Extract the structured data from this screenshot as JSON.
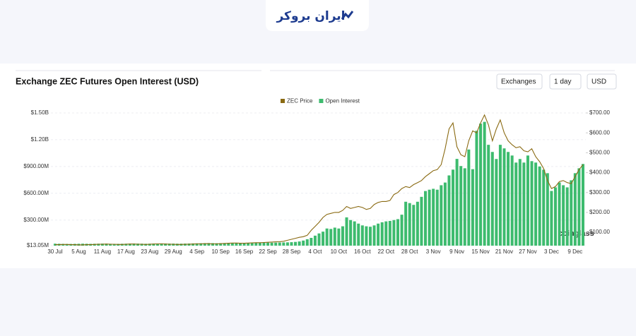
{
  "header": {
    "logo": "ایران بروکر"
  },
  "controls": [
    "Exchanges",
    "1 day",
    "USD"
  ],
  "watermark": "coinglass",
  "chart_data": {
    "type": "bar-line",
    "title": "Exchange ZEC Futures Open Interest (USD)",
    "categories": [
      "30 Jul",
      null,
      null,
      null,
      null,
      null,
      "5 Aug",
      null,
      null,
      null,
      null,
      null,
      "11 Aug",
      null,
      null,
      null,
      null,
      null,
      "17 Aug",
      null,
      null,
      null,
      null,
      null,
      "23 Aug",
      null,
      null,
      null,
      null,
      null,
      "29 Aug",
      null,
      null,
      null,
      null,
      null,
      "4 Sep",
      null,
      null,
      null,
      null,
      null,
      "10 Sep",
      null,
      null,
      null,
      null,
      null,
      "16 Sep",
      null,
      null,
      null,
      null,
      null,
      "22 Sep",
      null,
      null,
      null,
      null,
      null,
      "28 Sep",
      null,
      null,
      null,
      null,
      null,
      "4 Oct",
      null,
      null,
      null,
      null,
      null,
      "10 Oct",
      null,
      null,
      null,
      null,
      null,
      "16 Oct",
      null,
      null,
      null,
      null,
      null,
      "22 Oct",
      null,
      null,
      null,
      null,
      null,
      "28 Oct",
      null,
      null,
      null,
      null,
      null,
      "3 Nov",
      null,
      null,
      null,
      null,
      null,
      "9 Nov",
      null,
      null,
      null,
      null,
      null,
      "15 Nov",
      null,
      null,
      null,
      null,
      null,
      "21 Nov",
      null,
      null,
      null,
      null,
      null,
      "27 Nov",
      null,
      null,
      null,
      null,
      null,
      "3 Dec",
      null,
      null,
      null,
      null,
      null,
      "9 Dec",
      null,
      null
    ],
    "series": [
      {
        "name": "Open Interest",
        "color": "#3dbb6e",
        "kind": "bar",
        "values": [
          35000000.0,
          34000000.0,
          33000000.0,
          32000000.0,
          32000000.0,
          33000000.0,
          34000000.0,
          35000000.0,
          34000000.0,
          33000000.0,
          34000000.0,
          35000000.0,
          36000000.0,
          35000000.0,
          34000000.0,
          33000000.0,
          33000000.0,
          34000000.0,
          35000000.0,
          36000000.0,
          37000000.0,
          36000000.0,
          35000000.0,
          34000000.0,
          35000000.0,
          36000000.0,
          37000000.0,
          38000000.0,
          37000000.0,
          36000000.0,
          36000000.0,
          35000000.0,
          35000000.0,
          36000000.0,
          37000000.0,
          38000000.0,
          39000000.0,
          40000000.0,
          41000000.0,
          42000000.0,
          41000000.0,
          40000000.0,
          41000000.0,
          42000000.0,
          43000000.0,
          44000000.0,
          45000000.0,
          44000000.0,
          43000000.0,
          44000000.0,
          45000000.0,
          46000000.0,
          47000000.0,
          48000000.0,
          47000000.0,
          46000000.0,
          47000000.0,
          48000000.0,
          49000000.0,
          50000000.0,
          52000000.0,
          55000000.0,
          60000000.0,
          70000000.0,
          85000000.0,
          100000000.0,
          125000000.0,
          150000000.0,
          170000000.0,
          205000000.0,
          200000000.0,
          215000000.0,
          205000000.0,
          230000000.0,
          330000000.0,
          300000000.0,
          285000000.0,
          260000000.0,
          240000000.0,
          230000000.0,
          225000000.0,
          240000000.0,
          260000000.0,
          275000000.0,
          285000000.0,
          290000000.0,
          300000000.0,
          310000000.0,
          360000000.0,
          505000000.0,
          490000000.0,
          470000000.0,
          505000000.0,
          560000000.0,
          625000000.0,
          640000000.0,
          650000000.0,
          640000000.0,
          690000000.0,
          720000000.0,
          800000000.0,
          865000000.0,
          985000000.0,
          905000000.0,
          880000000.0,
          1090000000.0,
          870000000.0,
          1300000000.0,
          1380000000.0,
          1400000000.0,
          1143000000.0,
          1063000000.0,
          984000000.0,
          1143000000.0,
          1103000000.0,
          1063000000.0,
          1023000000.0,
          944000000.0,
          984000000.0,
          944000000.0,
          1023000000.0,
          960000000.0,
          944000000.0,
          900000000.0,
          864000000.0,
          825000000.0,
          626000000.0,
          666000000.0,
          721000000.0,
          690000000.0,
          666000000.0,
          745000000.0,
          825000000.0,
          880000000.0,
          928000000.0
        ]
      },
      {
        "name": "ZEC Price",
        "color": "#8a6a12",
        "kind": "line",
        "axis": "y2",
        "values": [
          38,
          38,
          39,
          39,
          38,
          38,
          37,
          37,
          38,
          38,
          39,
          40,
          40,
          41,
          40,
          40,
          39,
          39,
          40,
          41,
          41,
          40,
          40,
          39,
          40,
          41,
          42,
          42,
          41,
          40,
          40,
          39,
          39,
          40,
          40,
          41,
          42,
          42,
          43,
          43,
          42,
          42,
          43,
          44,
          45,
          46,
          46,
          45,
          45,
          46,
          47,
          48,
          48,
          49,
          50,
          51,
          52,
          53,
          55,
          60,
          65,
          70,
          75,
          78,
          85,
          110,
          130,
          150,
          175,
          190,
          195,
          200,
          200,
          210,
          230,
          220,
          225,
          230,
          225,
          215,
          220,
          240,
          250,
          255,
          255,
          260,
          290,
          300,
          320,
          330,
          325,
          340,
          350,
          360,
          380,
          395,
          410,
          415,
          440,
          520,
          620,
          650,
          530,
          490,
          480,
          560,
          610,
          600,
          650,
          690,
          640,
          560,
          620,
          665,
          600,
          560,
          540,
          525,
          530,
          510,
          505,
          520,
          480,
          455,
          420,
          360,
          320,
          330,
          355,
          360,
          350,
          345,
          380,
          415,
          440
        ]
      }
    ],
    "ylim": [
      13050000,
      1500000000
    ],
    "yticks": [
      {
        "value": 13050000,
        "label": "$13.05M"
      },
      {
        "value": 300000000,
        "label": "$300.00M"
      },
      {
        "value": 600000000,
        "label": "$600.00M"
      },
      {
        "value": 900000000,
        "label": "$900.00M"
      },
      {
        "value": 1200000000,
        "label": "$1.20B"
      },
      {
        "value": 1500000000,
        "label": "$1.50B"
      }
    ],
    "y2lim": [
      33,
      700
    ],
    "y2ticks": [
      {
        "value": 100,
        "label": "$100.00"
      },
      {
        "value": 200,
        "label": "$200.00"
      },
      {
        "value": 300,
        "label": "$300.00"
      },
      {
        "value": 400,
        "label": "$400.00"
      },
      {
        "value": 500,
        "label": "$500.00"
      },
      {
        "value": 600,
        "label": "$600.00"
      },
      {
        "value": 700,
        "label": "$700.00"
      }
    ],
    "grid": true
  }
}
